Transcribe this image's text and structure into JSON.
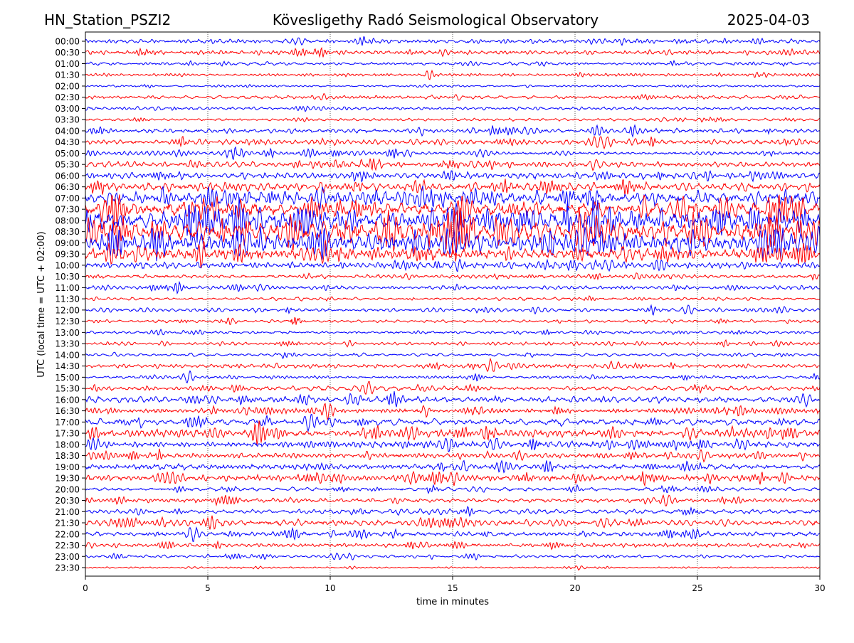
{
  "chart_data": {
    "type": "line",
    "subtype": "helicorder",
    "title_left": "HN_Station_PSZI2",
    "title_center": "Kövesligethy Radó Seismological Observatory",
    "title_right": "2025-04-03",
    "xlabel": "time in minutes",
    "ylabel": "UTC (local time = UTC + 02:00)",
    "xlim": [
      0,
      30
    ],
    "xticks": [
      "0",
      "5",
      "10",
      "15",
      "20",
      "25",
      "30"
    ],
    "grid": "vertical dotted at 5-minute intervals",
    "colors": [
      "#0000ff",
      "#ff0000"
    ],
    "rows": [
      "00:00",
      "00:30",
      "01:00",
      "01:30",
      "02:00",
      "02:30",
      "03:00",
      "03:30",
      "04:00",
      "04:30",
      "05:00",
      "05:30",
      "06:00",
      "06:30",
      "07:00",
      "07:30",
      "08:00",
      "08:30",
      "09:00",
      "09:30",
      "10:00",
      "10:30",
      "11:00",
      "11:30",
      "12:00",
      "12:30",
      "13:00",
      "13:30",
      "14:00",
      "14:30",
      "15:00",
      "15:30",
      "16:00",
      "16:30",
      "17:00",
      "17:30",
      "18:00",
      "18:30",
      "19:00",
      "19:30",
      "20:00",
      "20:30",
      "21:00",
      "21:30",
      "22:00",
      "22:30",
      "23:00",
      "23:30"
    ],
    "relative_noise_level": [
      2,
      2,
      1.5,
      1.5,
      1,
      1.5,
      1.5,
      1.5,
      2.5,
      2.5,
      2.5,
      2.5,
      3,
      4,
      6,
      8,
      9,
      10,
      8,
      6,
      3,
      2,
      2,
      1.5,
      2,
      1.5,
      1.5,
      1.5,
      1.5,
      2,
      1.5,
      2,
      3,
      3,
      3,
      4,
      3.5,
      3,
      3,
      3.5,
      2,
      2,
      2,
      3,
      3,
      2,
      1.5,
      1
    ],
    "events": [
      {
        "row": "00:00",
        "minute": 8.6,
        "amplitude": 5
      },
      {
        "row": "00:30",
        "minute": 14.7,
        "amplitude": 4
      },
      {
        "row": "01:30",
        "minute": 14.0,
        "amplitude": 4
      },
      {
        "row": "02:30",
        "minute": 9.7,
        "amplitude": 4
      },
      {
        "row": "05:00",
        "minute": 13.2,
        "amplitude": 5
      },
      {
        "row": "10:00",
        "minute": 21.4,
        "amplitude": 6
      },
      {
        "row": "11:00",
        "minute": 7.2,
        "amplitude": 5
      },
      {
        "row": "12:00",
        "minute": 24.6,
        "amplitude": 6
      },
      {
        "row": "12:30",
        "minute": 8.6,
        "amplitude": 6,
        "kind": "burst"
      },
      {
        "row": "14:30",
        "minute": 16.6,
        "amplitude": 8
      },
      {
        "row": "14:30",
        "minute": 21.7,
        "amplitude": 6
      },
      {
        "row": "15:00",
        "minute": 4.2,
        "amplitude": 7
      },
      {
        "row": "15:30",
        "minute": 11.5,
        "amplitude": 7
      },
      {
        "row": "16:00",
        "minute": 29.3,
        "amplitude": 8
      },
      {
        "row": "16:30",
        "minute": 9.8,
        "amplitude": 7
      },
      {
        "row": "17:00",
        "minute": 9.2,
        "amplitude": 7
      },
      {
        "row": "18:00",
        "minute": 16.7,
        "amplitude": 9
      },
      {
        "row": "18:00",
        "minute": 14.7,
        "amplitude": 8
      },
      {
        "row": "18:30",
        "minute": 25.2,
        "amplitude": 7
      },
      {
        "row": "19:30",
        "minute": 13.3,
        "amplitude": 7
      },
      {
        "row": "20:30",
        "minute": 23.7,
        "amplitude": 7
      },
      {
        "row": "22:00",
        "minute": 4.4,
        "amplitude": 9
      },
      {
        "row": "23:00",
        "minute": 10.3,
        "amplitude": 4
      }
    ]
  }
}
